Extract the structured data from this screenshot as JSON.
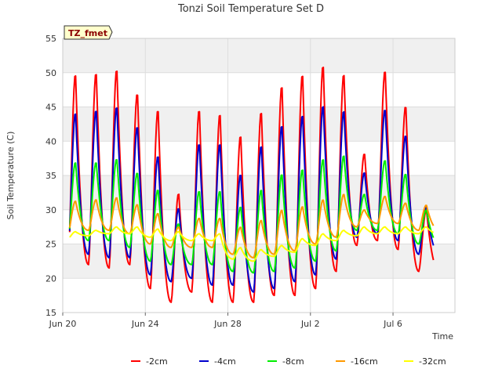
{
  "chart_data": {
    "type": "line",
    "title": "Tonzi Soil Temperature Set D",
    "xlabel": "Time",
    "ylabel": "Soil Temperature (C)",
    "site_tag": "TZ_fmet",
    "ylim": [
      15,
      55
    ],
    "yticks": [
      15,
      20,
      25,
      30,
      35,
      40,
      45,
      50,
      55
    ],
    "xlim": [
      "2024-06-20",
      "2024-07-09"
    ],
    "xticks": [
      {
        "date": "2024-06-20",
        "label": "Jun 20"
      },
      {
        "date": "2024-06-24",
        "label": "Jun 24"
      },
      {
        "date": "2024-06-28",
        "label": "Jun 28"
      },
      {
        "date": "2024-07-02",
        "label": "Jul 2"
      },
      {
        "date": "2024-07-06",
        "label": "Jul 6"
      }
    ],
    "grid": true,
    "legend_position": "bottom",
    "x": [
      "2024-06-20",
      "2024-06-21",
      "2024-06-22",
      "2024-06-23",
      "2024-06-24",
      "2024-06-25",
      "2024-06-26",
      "2024-06-27",
      "2024-06-28",
      "2024-06-29",
      "2024-06-30",
      "2024-07-01",
      "2024-07-02",
      "2024-07-03",
      "2024-07-04",
      "2024-07-05",
      "2024-07-06",
      "2024-07-07"
    ],
    "series": [
      {
        "name": "-2cm",
        "color": "#ff0000",
        "min": [
          21.5,
          22.0,
          21.5,
          22.0,
          18.5,
          16.5,
          18.0,
          16.5,
          16.5,
          16.5,
          17.5,
          17.5,
          18.5,
          21.0,
          24.8,
          25.5,
          24.2,
          21.0
        ],
        "max": [
          50.0,
          50.2,
          50.7,
          47.2,
          44.8,
          32.5,
          44.8,
          44.2,
          41.0,
          44.5,
          48.3,
          50.0,
          51.3,
          50.0,
          38.3,
          50.5,
          45.3,
          30.0
        ]
      },
      {
        "name": "-4cm",
        "color": "#0000cc",
        "min": [
          23.0,
          23.5,
          23.0,
          23.0,
          20.5,
          19.5,
          20.0,
          19.0,
          19.0,
          18.0,
          18.5,
          19.5,
          20.5,
          22.8,
          26.0,
          26.5,
          25.5,
          23.5
        ],
        "max": [
          44.3,
          44.7,
          45.2,
          42.3,
          38.0,
          30.3,
          39.8,
          39.8,
          35.3,
          39.5,
          42.5,
          44.0,
          45.4,
          44.6,
          35.5,
          44.8,
          41.0,
          30.5
        ]
      },
      {
        "name": "-8cm",
        "color": "#00ee00",
        "min": [
          25.0,
          25.5,
          25.5,
          24.5,
          22.5,
          22.0,
          22.0,
          22.0,
          21.0,
          20.8,
          21.0,
          21.5,
          22.5,
          24.0,
          27.0,
          27.0,
          26.5,
          25.0
        ],
        "max": [
          37.0,
          37.0,
          37.5,
          35.5,
          33.0,
          28.0,
          32.8,
          32.8,
          30.5,
          33.0,
          35.3,
          36.0,
          37.5,
          38.0,
          32.3,
          37.3,
          35.3,
          30.0
        ]
      },
      {
        "name": "-16cm",
        "color": "#ff9900",
        "min": [
          26.5,
          27.0,
          27.0,
          26.5,
          25.0,
          24.5,
          24.5,
          24.5,
          23.5,
          23.0,
          23.5,
          24.0,
          25.0,
          26.0,
          27.5,
          28.0,
          28.0,
          27.0
        ],
        "max": [
          31.3,
          31.5,
          31.8,
          30.8,
          29.5,
          27.5,
          28.8,
          28.8,
          27.5,
          28.5,
          30.0,
          30.5,
          31.5,
          32.3,
          30.0,
          32.0,
          31.0,
          30.7
        ]
      },
      {
        "name": "-32cm",
        "color": "#ffff00",
        "min": [
          25.8,
          26.2,
          26.5,
          26.5,
          26.0,
          25.5,
          25.5,
          25.5,
          22.8,
          22.5,
          23.2,
          23.8,
          24.8,
          25.5,
          26.2,
          26.5,
          26.5,
          26.5
        ],
        "max": [
          26.8,
          27.0,
          27.5,
          27.5,
          27.2,
          26.8,
          26.5,
          26.5,
          24.5,
          24.2,
          24.8,
          25.8,
          26.5,
          27.0,
          27.5,
          27.5,
          27.5,
          27.5
        ]
      }
    ]
  }
}
